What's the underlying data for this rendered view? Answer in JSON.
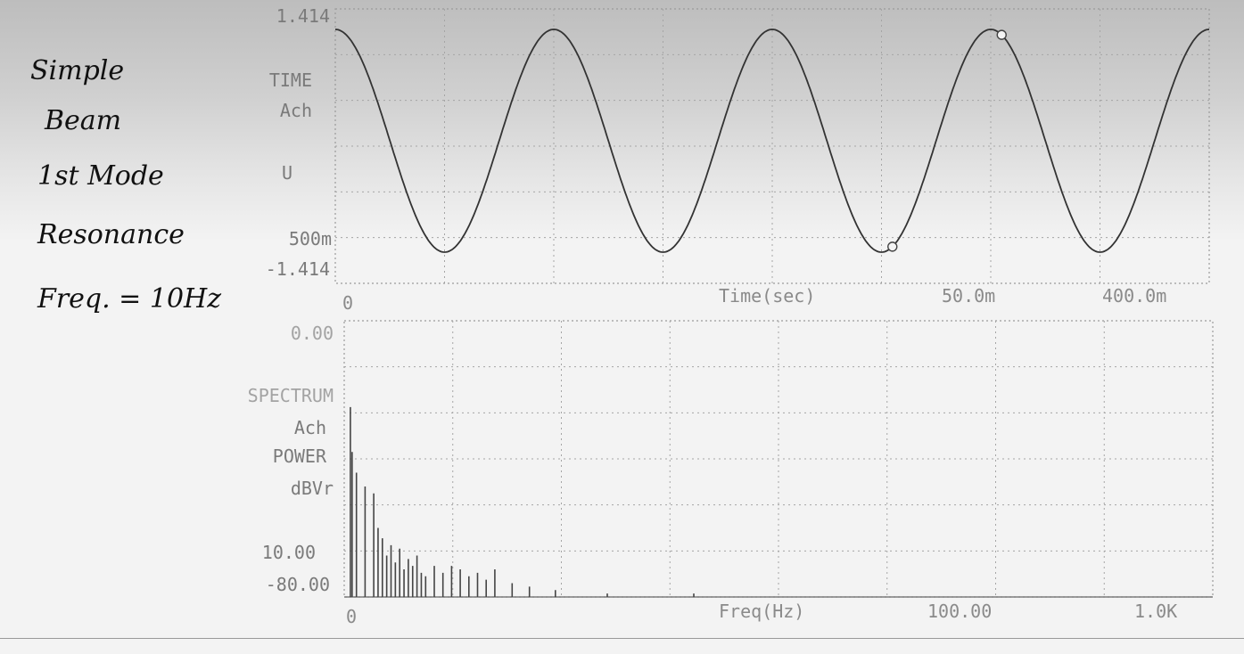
{
  "annotation": {
    "lines": [
      "Simple",
      "Beam",
      "1st Mode",
      "Resonance",
      "Freq. = 10Hz"
    ]
  },
  "chart_data": [
    {
      "type": "line",
      "panel": "time",
      "labels": {
        "y_top": "1.414",
        "trace_line1": "TIME",
        "trace_line2": "Ach",
        "unit": "U",
        "scale": "500m",
        "y_bottom": "-1.414",
        "x_start": "0",
        "x_title": "Time(sec)",
        "x_cursor": "50.0m",
        "x_end": "400.0m"
      },
      "x": {
        "min": 0,
        "max": 0.4,
        "unit": "sec"
      },
      "ylim": [
        -1.414,
        1.414
      ],
      "series": [
        {
          "amplitude": 1.414,
          "frequency_hz": 10,
          "phase": "cosine",
          "cursor_times_sec": [
            0.255,
            0.305
          ]
        }
      ],
      "grid": "dotted"
    },
    {
      "type": "bar",
      "panel": "spectrum",
      "labels": {
        "y_top": "0.00",
        "trace_line1": "SPECTRUM",
        "trace_line2": "Ach",
        "trace_line3": "POWER",
        "unit": "dBVr",
        "scale": "10.00",
        "y_bottom": "-80.00",
        "x_start": "0",
        "x_title": "Freq(Hz)",
        "x_cursor": "100.00",
        "x_end": "1.0K"
      },
      "x": {
        "min": 0,
        "max": 1000,
        "unit": "Hz"
      },
      "ylim": [
        -80,
        0
      ],
      "peaks": [
        {
          "freq_hz": 3,
          "db": -25
        },
        {
          "freq_hz": 5,
          "db": -38
        },
        {
          "freq_hz": 10,
          "db": -44
        },
        {
          "freq_hz": 20,
          "db": -48
        },
        {
          "freq_hz": 30,
          "db": -50
        },
        {
          "freq_hz": 35,
          "db": -60
        },
        {
          "freq_hz": 40,
          "db": -63
        },
        {
          "freq_hz": 45,
          "db": -68
        },
        {
          "freq_hz": 50,
          "db": -65
        },
        {
          "freq_hz": 55,
          "db": -70
        },
        {
          "freq_hz": 60,
          "db": -66
        },
        {
          "freq_hz": 65,
          "db": -72
        },
        {
          "freq_hz": 70,
          "db": -69
        },
        {
          "freq_hz": 75,
          "db": -71
        },
        {
          "freq_hz": 80,
          "db": -68
        },
        {
          "freq_hz": 85,
          "db": -73
        },
        {
          "freq_hz": 90,
          "db": -74
        },
        {
          "freq_hz": 100,
          "db": -71
        },
        {
          "freq_hz": 110,
          "db": -73
        },
        {
          "freq_hz": 120,
          "db": -71
        },
        {
          "freq_hz": 130,
          "db": -72
        },
        {
          "freq_hz": 140,
          "db": -74
        },
        {
          "freq_hz": 150,
          "db": -73
        },
        {
          "freq_hz": 160,
          "db": -75
        },
        {
          "freq_hz": 170,
          "db": -72
        },
        {
          "freq_hz": 190,
          "db": -76
        },
        {
          "freq_hz": 210,
          "db": -77
        },
        {
          "freq_hz": 240,
          "db": -78
        },
        {
          "freq_hz": 300,
          "db": -79
        },
        {
          "freq_hz": 400,
          "db": -79
        }
      ],
      "grid": "dotted"
    }
  ]
}
